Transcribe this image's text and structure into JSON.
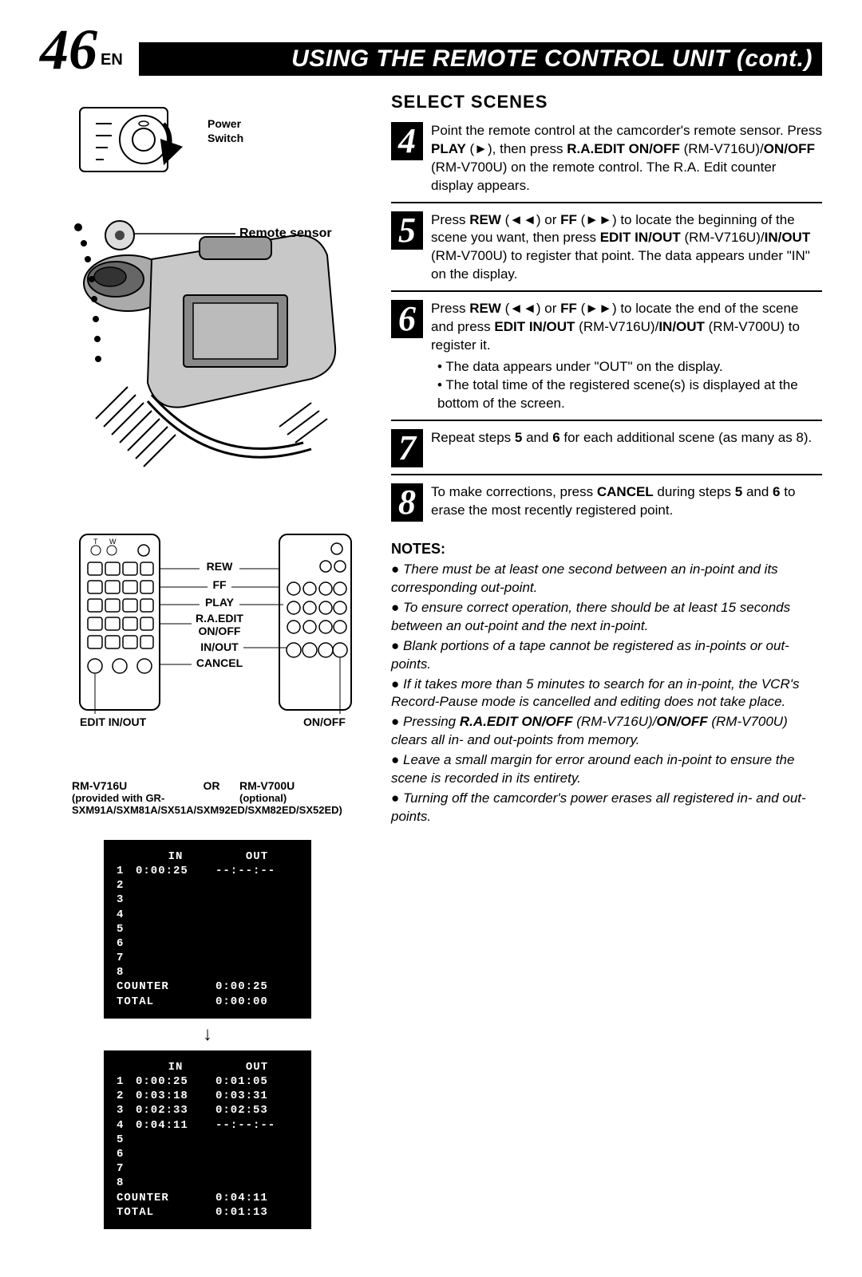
{
  "page": {
    "num": "46",
    "lang": "EN"
  },
  "header_banner": "USING THE REMOTE CONTROL UNIT (cont.)",
  "left": {
    "power_switch": "Power Switch",
    "remote_sensor": "Remote sensor",
    "labels": {
      "rew": "REW",
      "ff": "FF",
      "play": "PLAY",
      "raedit": "R.A.EDIT ON/OFF",
      "inout": "IN/OUT",
      "cancel": "CANCEL",
      "edit_inout": "EDIT IN/OUT",
      "onoff": "ON/OFF"
    },
    "remote1": {
      "model": "RM-V716U",
      "desc": "(provided with GR-SXM91A/SXM81A/SX51A/SXM92ED/SXM82ED/SX52ED)"
    },
    "or": "OR",
    "remote2": {
      "model": "RM-V700U",
      "desc": "(optional)"
    },
    "counter1": {
      "in_label": "IN",
      "out_label": "OUT",
      "rows": [
        {
          "idx": "1",
          "in": "0:00:25",
          "out": "--:--:--"
        },
        {
          "idx": "2",
          "in": "",
          "out": ""
        },
        {
          "idx": "3",
          "in": "",
          "out": ""
        },
        {
          "idx": "4",
          "in": "",
          "out": ""
        },
        {
          "idx": "5",
          "in": "",
          "out": ""
        },
        {
          "idx": "6",
          "in": "",
          "out": ""
        },
        {
          "idx": "7",
          "in": "",
          "out": ""
        },
        {
          "idx": "8",
          "in": "",
          "out": ""
        }
      ],
      "counter_label": "COUNTER",
      "counter_val": "0:00:25",
      "total_label": "TOTAL",
      "total_val": "0:00:00"
    },
    "counter2": {
      "in_label": "IN",
      "out_label": "OUT",
      "rows": [
        {
          "idx": "1",
          "in": "0:00:25",
          "out": "0:01:05"
        },
        {
          "idx": "2",
          "in": "0:03:18",
          "out": "0:03:31"
        },
        {
          "idx": "3",
          "in": "0:02:33",
          "out": "0:02:53"
        },
        {
          "idx": "4",
          "in": "0:04:11",
          "out": "--:--:--"
        },
        {
          "idx": "5",
          "in": "",
          "out": ""
        },
        {
          "idx": "6",
          "in": "",
          "out": ""
        },
        {
          "idx": "7",
          "in": "",
          "out": ""
        },
        {
          "idx": "8",
          "in": "",
          "out": ""
        }
      ],
      "counter_label": "COUNTER",
      "counter_val": "0:04:11",
      "total_label": "TOTAL",
      "total_val": "0:01:13"
    }
  },
  "right": {
    "section_title": "SELECT SCENES",
    "steps": [
      {
        "n": "4",
        "html": "Point the remote control at the camcorder's remote sensor. Press <b>PLAY</b> (►), then press <b>R.A.EDIT ON/OFF</b> (RM-V716U)/<b>ON/OFF</b> (RM-V700U) on the remote control. The R.A. Edit counter display appears."
      },
      {
        "n": "5",
        "html": "Press <b>REW</b> (◄◄) or <b>FF</b> (►►) to locate the beginning of the scene you want, then press <b>EDIT IN/OUT</b> (RM-V716U)/<b>IN/OUT</b> (RM-V700U) to register that point. The data appears under \"IN\" on the display."
      },
      {
        "n": "6",
        "html": "Press <b>REW</b> (◄◄) or <b>FF</b> (►►) to locate the end of the scene and press <b>EDIT IN/OUT</b> (RM-V716U)/<b>IN/OUT</b> (RM-V700U) to register it.<ul><li>The data appears under \"OUT\" on the display.</li><li>The total time of the registered scene(s) is displayed at the bottom of the screen.</li></ul>"
      },
      {
        "n": "7",
        "html": "Repeat steps <b>5</b> and <b>6</b> for each additional scene (as many as 8)."
      },
      {
        "n": "8",
        "html": "To make corrections, press <b>CANCEL</b> during steps <b>5</b> and <b>6</b> to erase the most recently registered point."
      }
    ],
    "notes_title": "NOTES:",
    "notes": [
      "There must be at least one second between an in-point and its corresponding out-point.",
      "To ensure correct operation, there should be at least 15 seconds between an out-point and the next in-point.",
      "Blank portions of a tape cannot be registered as in-points or out-points.",
      "If it takes more than 5 minutes to search for an in-point, the VCR's Record-Pause mode is cancelled and editing does not take place.",
      "Pressing <b>R.A.EDIT ON/OFF</b> (RM-V716U)/<b>ON/OFF</b> (RM-V700U) clears all in- and out-points from memory.",
      "Leave a small margin for error around each in-point to ensure the scene is recorded in its entirety.",
      "Turning off the camcorder's power erases all registered in- and out-points."
    ]
  }
}
